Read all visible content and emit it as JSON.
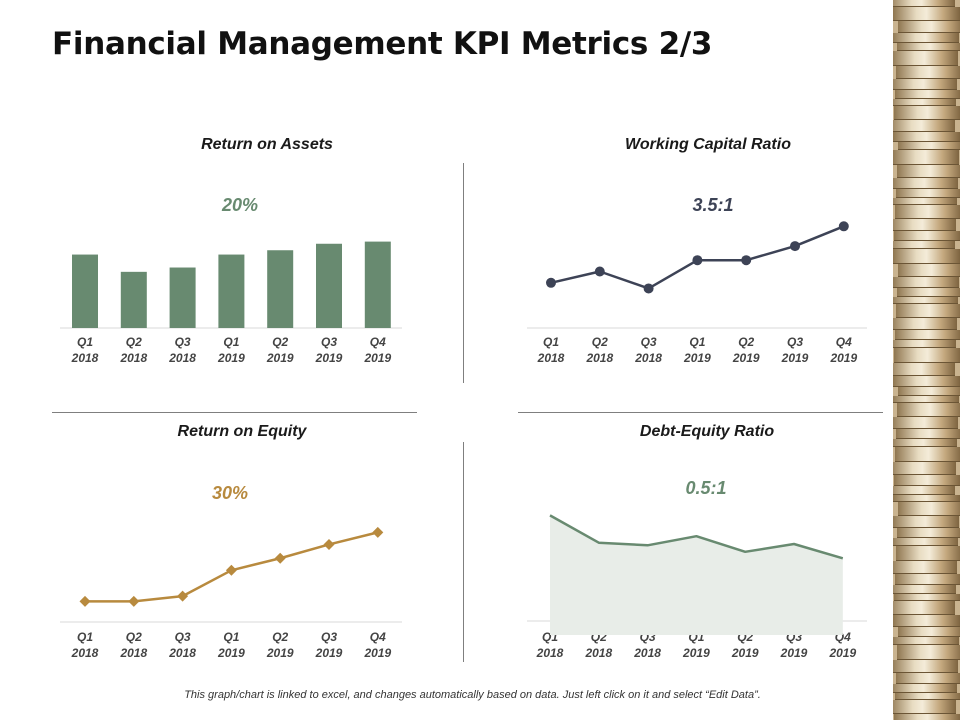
{
  "page": {
    "title": "Financial Management KPI Metrics 2/3",
    "footnote": "This graph/chart is linked to excel, and changes automatically  based on data.  Just left click on it and select “Edit Data”."
  },
  "colors": {
    "bar": "#688a70",
    "line_dark": "#3d4356",
    "line_gold": "#b88a3e",
    "area_line": "#688a70",
    "area_fill": "#e8ede8",
    "axis": "#d9d9d9"
  },
  "chart_data": [
    {
      "id": "roa",
      "type": "bar",
      "title": "Return on Assets",
      "kpi_label": "20%",
      "categories": [
        [
          "Q1",
          "2018"
        ],
        [
          "Q2",
          "2018"
        ],
        [
          "Q3",
          "2018"
        ],
        [
          "Q1",
          "2019"
        ],
        [
          "Q2",
          "2019"
        ],
        [
          "Q3",
          "2019"
        ],
        [
          "Q4",
          "2019"
        ]
      ],
      "values": [
        17,
        13,
        14,
        17,
        18,
        19.5,
        20
      ],
      "ylim": [
        0,
        25
      ]
    },
    {
      "id": "wcr",
      "type": "line",
      "title": "Working Capital Ratio",
      "kpi_label": "3.5:1",
      "categories": [
        [
          "Q1",
          "2018"
        ],
        [
          "Q2",
          "2018"
        ],
        [
          "Q3",
          "2018"
        ],
        [
          "Q1",
          "2019"
        ],
        [
          "Q2",
          "2019"
        ],
        [
          "Q3",
          "2019"
        ],
        [
          "Q4",
          "2019"
        ]
      ],
      "values": [
        1.6,
        2.0,
        1.4,
        2.4,
        2.4,
        2.9,
        3.6
      ],
      "ylim": [
        0,
        4
      ]
    },
    {
      "id": "roe",
      "type": "line",
      "title": "Return on Equity",
      "kpi_label": "30%",
      "categories": [
        [
          "Q1",
          "2018"
        ],
        [
          "Q2",
          "2018"
        ],
        [
          "Q3",
          "2018"
        ],
        [
          "Q1",
          "2019"
        ],
        [
          "Q2",
          "2019"
        ],
        [
          "Q3",
          "2019"
        ],
        [
          "Q4",
          "2019"
        ]
      ],
      "values": [
        12,
        12,
        15,
        30,
        37,
        45,
        52
      ],
      "ylim": [
        0,
        65
      ]
    },
    {
      "id": "der",
      "type": "area",
      "title": "Debt-Equity Ratio",
      "kpi_label": "0.5:1",
      "categories": [
        [
          "Q1",
          "2018"
        ],
        [
          "Q2",
          "2018"
        ],
        [
          "Q3",
          "2018"
        ],
        [
          "Q1",
          "2019"
        ],
        [
          "Q2",
          "2019"
        ],
        [
          "Q3",
          "2019"
        ],
        [
          "Q4",
          "2019"
        ]
      ],
      "values": [
        0.92,
        0.71,
        0.69,
        0.76,
        0.64,
        0.7,
        0.59
      ],
      "ylim": [
        0,
        1
      ]
    }
  ]
}
